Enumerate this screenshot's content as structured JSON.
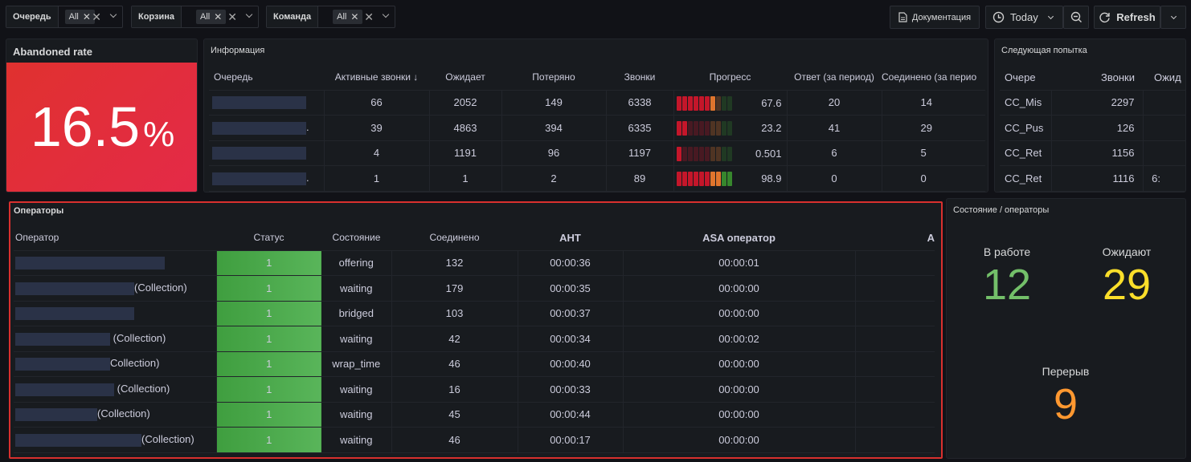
{
  "vars": [
    {
      "label": "Очередь",
      "value": "All"
    },
    {
      "label": "Корзина",
      "value": "All"
    },
    {
      "label": "Команда",
      "value": "All"
    }
  ],
  "toolbar": {
    "docs": "Документация",
    "time": "Today",
    "refresh": "Refresh"
  },
  "abandoned": {
    "title": "Abandoned rate",
    "value": "16.5",
    "unit": "%"
  },
  "info": {
    "title": "Информация",
    "columns": [
      "Очередь",
      "Активные звонки ↓",
      "Ожидает",
      "Потеряно",
      "Звонки",
      "Прогресс",
      "Ответ (за период)",
      "Соединено (за перио"
    ],
    "rows": [
      {
        "active": "66",
        "wait": "2052",
        "lost": "149",
        "calls": "6338",
        "progress": "67.6",
        "progress_frac": 0.676,
        "answer": "20",
        "connected": "14",
        "suffix": ""
      },
      {
        "active": "39",
        "wait": "4863",
        "lost": "394",
        "calls": "6335",
        "progress": "23.2",
        "progress_frac": 0.232,
        "answer": "41",
        "connected": "29",
        "suffix": "."
      },
      {
        "active": "4",
        "wait": "1191",
        "lost": "96",
        "calls": "1197",
        "progress": "0.501",
        "progress_frac": 0.01,
        "answer": "6",
        "connected": "5",
        "suffix": ""
      },
      {
        "active": "1",
        "wait": "1",
        "lost": "2",
        "calls": "89",
        "progress": "98.9",
        "progress_frac": 0.989,
        "answer": "0",
        "connected": "0",
        "suffix": "."
      }
    ]
  },
  "next": {
    "title": "Следующая попытка",
    "columns": [
      "Очере",
      "Звонки",
      "Ожид"
    ],
    "rows": [
      {
        "queue": "CC_Mis",
        "calls": "2297",
        "wait": ""
      },
      {
        "queue": "CC_Pus",
        "calls": "126",
        "wait": ""
      },
      {
        "queue": "CC_Ret",
        "calls": "1156",
        "wait": ""
      },
      {
        "queue": "CC_Ret",
        "calls": "1116",
        "wait": "6:"
      }
    ]
  },
  "operators": {
    "title": "Операторы",
    "columns": [
      "Оператор",
      "Статус",
      "Состояние",
      "Соединено",
      "AHT",
      "ASA оператор",
      "A"
    ],
    "rows": [
      {
        "suffix": "",
        "status": "1",
        "state": "offering",
        "connected": "132",
        "aht": "00:00:36",
        "asa": "00:00:01"
      },
      {
        "suffix": "(Collection)",
        "status": "1",
        "state": "waiting",
        "connected": "179",
        "aht": "00:00:35",
        "asa": "00:00:00"
      },
      {
        "suffix": "",
        "status": "1",
        "state": "bridged",
        "connected": "103",
        "aht": "00:00:37",
        "asa": "00:00:00"
      },
      {
        "suffix": " (Collection)",
        "status": "1",
        "state": "waiting",
        "connected": "42",
        "aht": "00:00:34",
        "asa": "00:00:02"
      },
      {
        "suffix": "Collection)",
        "status": "1",
        "state": "wrap_time",
        "connected": "46",
        "aht": "00:00:40",
        "asa": "00:00:00"
      },
      {
        "suffix": " (Collection)",
        "status": "1",
        "state": "waiting",
        "connected": "16",
        "aht": "00:00:33",
        "asa": "00:00:00"
      },
      {
        "suffix": "(Collection)",
        "status": "1",
        "state": "waiting",
        "connected": "45",
        "aht": "00:00:44",
        "asa": "00:00:00"
      },
      {
        "suffix": "(Collection)",
        "status": "1",
        "state": "waiting",
        "connected": "46",
        "aht": "00:00:17",
        "asa": "00:00:00"
      }
    ]
  },
  "state_panel": {
    "title": "Состояние / операторы",
    "in_work": {
      "label": "В работе",
      "value": "12",
      "color": "#73bf69"
    },
    "waiting": {
      "label": "Ожидают",
      "value": "29",
      "color": "#fade2a"
    },
    "break": {
      "label": "Перерыв",
      "value": "9",
      "color": "#ff9830"
    }
  },
  "icons": [
    "close-icon",
    "chevron-down-icon",
    "document-icon",
    "clock-icon",
    "zoom-out-icon",
    "refresh-icon",
    "sort-down-icon"
  ]
}
